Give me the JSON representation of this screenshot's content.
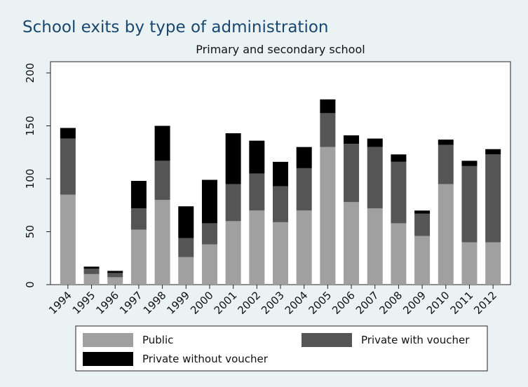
{
  "chart_data": {
    "type": "stacked_bar",
    "title": "School exits by type of administration",
    "subtitle": "Primary and secondary school",
    "categories": [
      "1994",
      "1995",
      "1996",
      "1997",
      "1998",
      "1999",
      "2000",
      "2001",
      "2002",
      "2003",
      "2004",
      "2005",
      "2006",
      "2007",
      "2008",
      "2009",
      "2010",
      "2011",
      "2012"
    ],
    "series": [
      {
        "name": "Public",
        "color": "#a0a0a0",
        "values": [
          85,
          10,
          7,
          52,
          80,
          26,
          38,
          60,
          70,
          59,
          70,
          130,
          78,
          72,
          58,
          46,
          95,
          40,
          40
        ]
      },
      {
        "name": "Private with voucher",
        "color": "#555555",
        "values": [
          53,
          5,
          4,
          20,
          37,
          18,
          20,
          35,
          35,
          34,
          40,
          32,
          55,
          58,
          58,
          21,
          37,
          72,
          83
        ]
      },
      {
        "name": "Private without voucher",
        "color": "#000000",
        "values": [
          10,
          2,
          2,
          26,
          33,
          30,
          41,
          48,
          31,
          23,
          20,
          13,
          8,
          8,
          7,
          3,
          5,
          5,
          5
        ]
      }
    ],
    "ylim": [
      0,
      200
    ],
    "yticks": [
      0,
      50,
      100,
      150,
      200
    ],
    "grid": false
  }
}
